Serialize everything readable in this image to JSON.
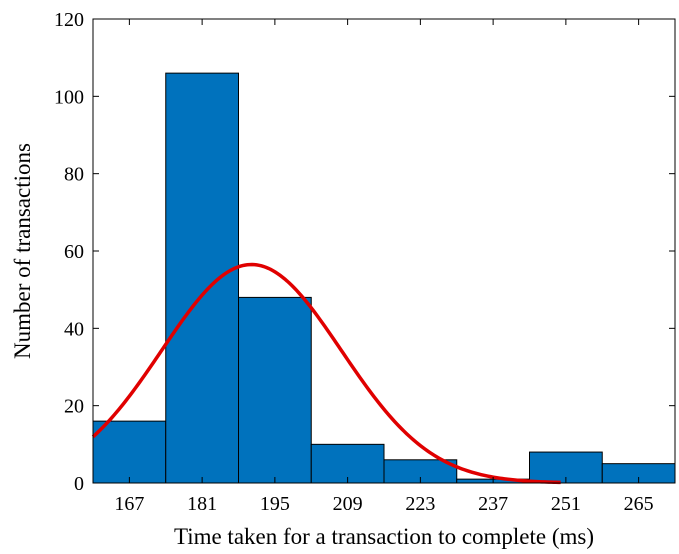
{
  "chart_data": {
    "type": "bar",
    "title": "",
    "xlabel": "Time taken for a transaction to complete (ms)",
    "ylabel": "Number of transactions",
    "categories": [
      "167",
      "181",
      "195",
      "209",
      "223",
      "237",
      "251",
      "265"
    ],
    "bin_centers": [
      167,
      181,
      195,
      209,
      223,
      237,
      251,
      265
    ],
    "bin_width": 14,
    "values": [
      16,
      106,
      48,
      10,
      6,
      1,
      8,
      5
    ],
    "xlim": [
      160,
      272
    ],
    "ylim": [
      0,
      120
    ],
    "yticks": [
      0,
      20,
      40,
      60,
      80,
      100,
      120
    ],
    "bar_color": "#0072BD",
    "fit_curve": {
      "type": "normal",
      "mean": 190.5,
      "std": 17.3,
      "peak": 56.5,
      "x_range": [
        160,
        250
      ],
      "color": "#E00000"
    },
    "grid": false,
    "legend": "none"
  }
}
